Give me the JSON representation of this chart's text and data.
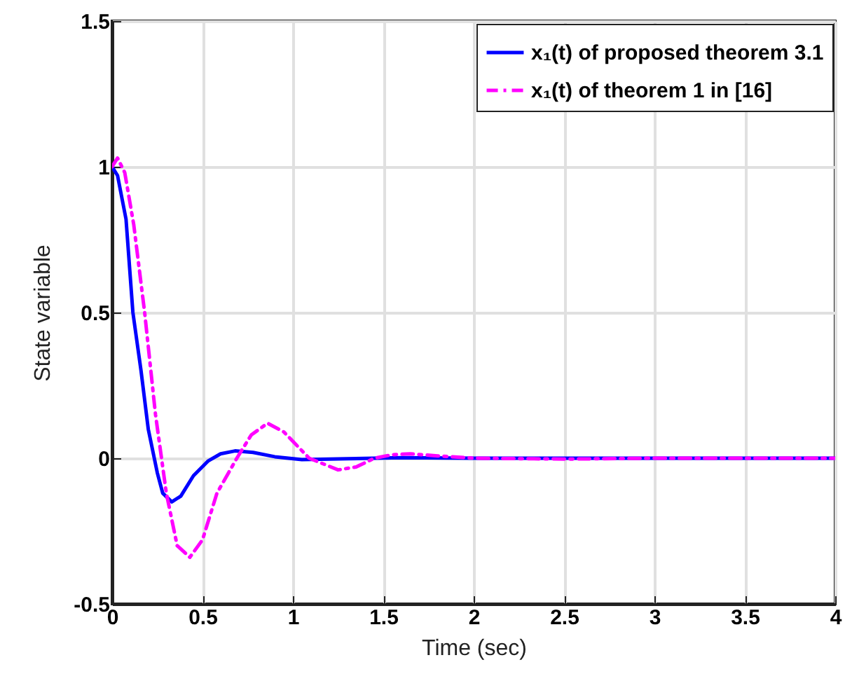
{
  "chart_data": {
    "type": "line",
    "xlabel": "Time (sec)",
    "ylabel": "State variable",
    "xlim": [
      0,
      4
    ],
    "xticks": [
      0,
      0.5,
      1,
      1.5,
      2,
      2.5,
      3,
      3.5,
      4
    ],
    "ylim": [
      -0.5,
      1.5
    ],
    "yticks": [
      -0.5,
      0,
      0.5,
      1,
      1.5
    ],
    "grid": true,
    "legend": "top right",
    "marker": "none",
    "series": [
      {
        "name": "x₁(t) of proposed theorem 3.1",
        "color": "#0000ff",
        "line_style": "solid",
        "x": [
          0,
          0.03,
          0.077,
          0.115,
          0.16,
          0.2,
          0.25,
          0.28,
          0.33,
          0.38,
          0.45,
          0.53,
          0.6,
          0.68,
          0.78,
          0.9,
          1.05,
          1.3,
          1.6,
          2,
          3,
          4
        ],
        "values": [
          1,
          0.97,
          0.82,
          0.5,
          0.3,
          0.1,
          -0.05,
          -0.12,
          -0.15,
          -0.13,
          -0.06,
          -0.01,
          0.015,
          0.025,
          0.02,
          0.005,
          -0.005,
          -0.002,
          0.002,
          0,
          0,
          0
        ]
      },
      {
        "name": "x₁(t) of theorem 1 in [16]",
        "color": "#ff00ff",
        "line_style": "dashed",
        "x": [
          0,
          0.03,
          0.07,
          0.12,
          0.18,
          0.24,
          0.3,
          0.36,
          0.43,
          0.5,
          0.58,
          0.69,
          0.77,
          0.86,
          0.95,
          1.09,
          1.25,
          1.35,
          1.45,
          1.55,
          1.65,
          1.8,
          2,
          2.5,
          3,
          4
        ],
        "values": [
          1,
          1.03,
          0.98,
          0.8,
          0.5,
          0.15,
          -0.12,
          -0.3,
          -0.34,
          -0.28,
          -0.12,
          0,
          0.08,
          0.12,
          0.09,
          0,
          -0.04,
          -0.03,
          0,
          0.012,
          0.015,
          0.008,
          0,
          -0.003,
          0,
          0
        ]
      }
    ]
  }
}
